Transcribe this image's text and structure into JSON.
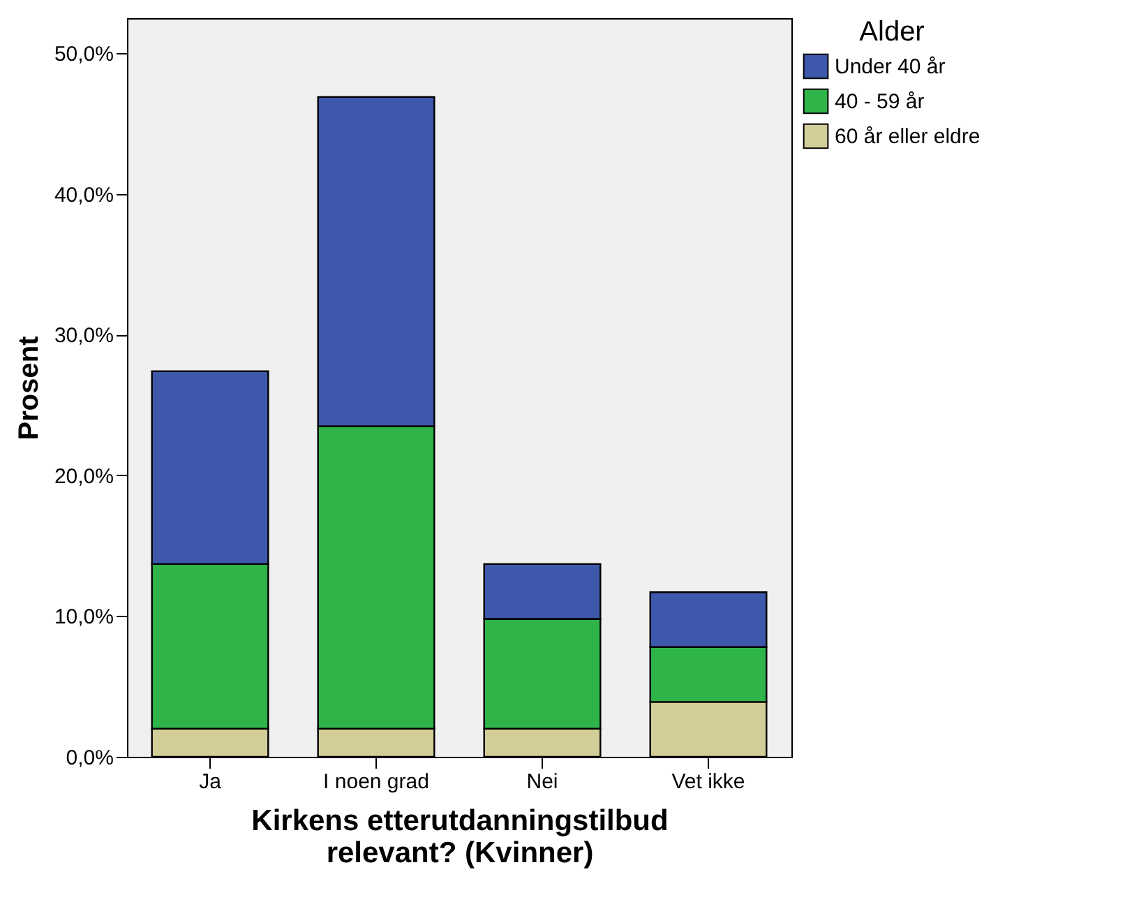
{
  "chart_data": {
    "type": "bar",
    "stacked": true,
    "xlabel": "Kirkens etterutdanningstilbud\nrelevant? (Kvinner)",
    "ylabel": "Prosent",
    "legend_title": "Alder",
    "legend": "right",
    "categories": [
      "Ja",
      "I noen grad",
      "Nei",
      "Vet ikke"
    ],
    "series": [
      {
        "name": "60 år eller eldre",
        "color": "#d3ce97",
        "values": [
          2.0,
          2.0,
          2.0,
          3.9
        ]
      },
      {
        "name": "40 - 59 år",
        "color": "#2fb44a",
        "values": [
          11.7,
          21.5,
          7.8,
          3.9
        ]
      },
      {
        "name": "Under 40 år",
        "color": "#3e58ac",
        "values": [
          13.7,
          23.4,
          3.9,
          3.9
        ]
      }
    ],
    "ylim": [
      0,
      52.5
    ],
    "yticks": [
      {
        "value": 0,
        "label": "0,0%"
      },
      {
        "value": 10,
        "label": "10,0%"
      },
      {
        "value": 20,
        "label": "20,0%"
      },
      {
        "value": 30,
        "label": "30,0%"
      },
      {
        "value": 40,
        "label": "40,0%"
      },
      {
        "value": 50,
        "label": "50,0%"
      }
    ],
    "grid": false
  }
}
